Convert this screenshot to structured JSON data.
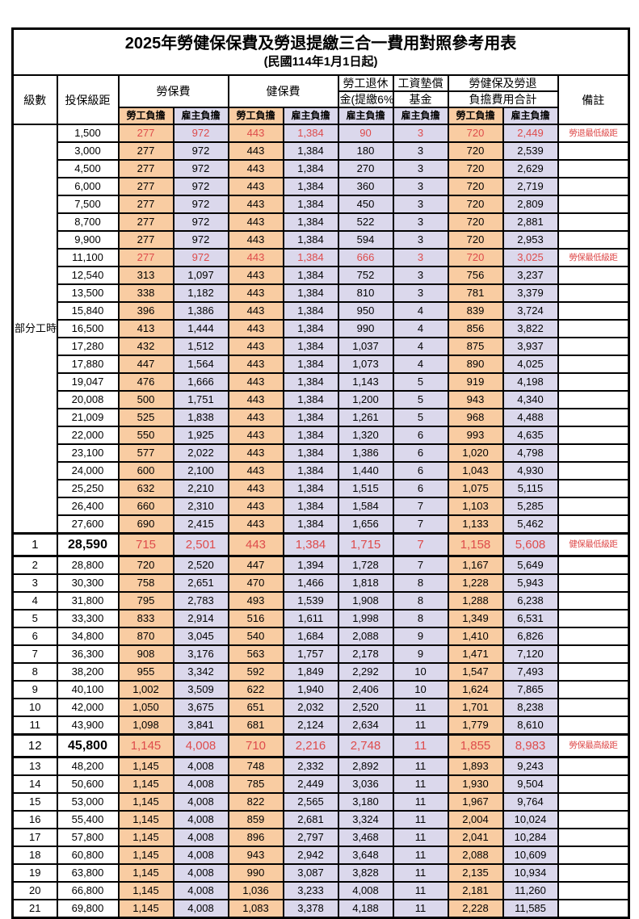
{
  "title": "2025年勞健保保費及勞退提繳三合一費用對照參考用表",
  "subtitle": "(民國114年1月1日起)",
  "header": {
    "grade": "級數",
    "bracket": "投保級距",
    "labor_insurance": "勞保費",
    "health_insurance": "健保費",
    "pension_line1": "勞工退休",
    "pension_line2": "金(提繳6%)",
    "wage_fund_line1": "工資墊償",
    "wage_fund_line2": "基金",
    "total_line1": "勞健保及勞退",
    "total_line2": "負擔費用合計",
    "remark": "備註",
    "employee": "勞工負擔",
    "employer": "雇主負擔"
  },
  "part_time_label": "部分工時",
  "colors": {
    "employee_bg": "#F9CCA2",
    "employer_bg": "#DBD8EC",
    "highlight_red": "#DE4B4B"
  },
  "rows": [
    {
      "grade": null,
      "bracket": "1,500",
      "labor_emp": "277",
      "labor_er": "972",
      "health_emp": "443",
      "health_er": "1,384",
      "pension": "90",
      "fund": "3",
      "total_emp": "720",
      "total_er": "2,449",
      "remark": "勞退最低級距",
      "red": true,
      "special": false
    },
    {
      "grade": null,
      "bracket": "3,000",
      "labor_emp": "277",
      "labor_er": "972",
      "health_emp": "443",
      "health_er": "1,384",
      "pension": "180",
      "fund": "3",
      "total_emp": "720",
      "total_er": "2,539",
      "remark": "",
      "red": false,
      "special": false
    },
    {
      "grade": null,
      "bracket": "4,500",
      "labor_emp": "277",
      "labor_er": "972",
      "health_emp": "443",
      "health_er": "1,384",
      "pension": "270",
      "fund": "3",
      "total_emp": "720",
      "total_er": "2,629",
      "remark": "",
      "red": false,
      "special": false
    },
    {
      "grade": null,
      "bracket": "6,000",
      "labor_emp": "277",
      "labor_er": "972",
      "health_emp": "443",
      "health_er": "1,384",
      "pension": "360",
      "fund": "3",
      "total_emp": "720",
      "total_er": "2,719",
      "remark": "",
      "red": false,
      "special": false
    },
    {
      "grade": null,
      "bracket": "7,500",
      "labor_emp": "277",
      "labor_er": "972",
      "health_emp": "443",
      "health_er": "1,384",
      "pension": "450",
      "fund": "3",
      "total_emp": "720",
      "total_er": "2,809",
      "remark": "",
      "red": false,
      "special": false
    },
    {
      "grade": null,
      "bracket": "8,700",
      "labor_emp": "277",
      "labor_er": "972",
      "health_emp": "443",
      "health_er": "1,384",
      "pension": "522",
      "fund": "3",
      "total_emp": "720",
      "total_er": "2,881",
      "remark": "",
      "red": false,
      "special": false
    },
    {
      "grade": null,
      "bracket": "9,900",
      "labor_emp": "277",
      "labor_er": "972",
      "health_emp": "443",
      "health_er": "1,384",
      "pension": "594",
      "fund": "3",
      "total_emp": "720",
      "total_er": "2,953",
      "remark": "",
      "red": false,
      "special": false
    },
    {
      "grade": null,
      "bracket": "11,100",
      "labor_emp": "277",
      "labor_er": "972",
      "health_emp": "443",
      "health_er": "1,384",
      "pension": "666",
      "fund": "3",
      "total_emp": "720",
      "total_er": "3,025",
      "remark": "勞保最低級距",
      "red": true,
      "special": false
    },
    {
      "grade": null,
      "bracket": "12,540",
      "labor_emp": "313",
      "labor_er": "1,097",
      "health_emp": "443",
      "health_er": "1,384",
      "pension": "752",
      "fund": "3",
      "total_emp": "756",
      "total_er": "3,237",
      "remark": "",
      "red": false,
      "special": false
    },
    {
      "grade": null,
      "bracket": "13,500",
      "labor_emp": "338",
      "labor_er": "1,182",
      "health_emp": "443",
      "health_er": "1,384",
      "pension": "810",
      "fund": "3",
      "total_emp": "781",
      "total_er": "3,379",
      "remark": "",
      "red": false,
      "special": false
    },
    {
      "grade": null,
      "bracket": "15,840",
      "labor_emp": "396",
      "labor_er": "1,386",
      "health_emp": "443",
      "health_er": "1,384",
      "pension": "950",
      "fund": "4",
      "total_emp": "839",
      "total_er": "3,724",
      "remark": "",
      "red": false,
      "special": false
    },
    {
      "grade": null,
      "bracket": "16,500",
      "labor_emp": "413",
      "labor_er": "1,444",
      "health_emp": "443",
      "health_er": "1,384",
      "pension": "990",
      "fund": "4",
      "total_emp": "856",
      "total_er": "3,822",
      "remark": "",
      "red": false,
      "special": false
    },
    {
      "grade": null,
      "bracket": "17,280",
      "labor_emp": "432",
      "labor_er": "1,512",
      "health_emp": "443",
      "health_er": "1,384",
      "pension": "1,037",
      "fund": "4",
      "total_emp": "875",
      "total_er": "3,937",
      "remark": "",
      "red": false,
      "special": false
    },
    {
      "grade": null,
      "bracket": "17,880",
      "labor_emp": "447",
      "labor_er": "1,564",
      "health_emp": "443",
      "health_er": "1,384",
      "pension": "1,073",
      "fund": "4",
      "total_emp": "890",
      "total_er": "4,025",
      "remark": "",
      "red": false,
      "special": false
    },
    {
      "grade": null,
      "bracket": "19,047",
      "labor_emp": "476",
      "labor_er": "1,666",
      "health_emp": "443",
      "health_er": "1,384",
      "pension": "1,143",
      "fund": "5",
      "total_emp": "919",
      "total_er": "4,198",
      "remark": "",
      "red": false,
      "special": false
    },
    {
      "grade": null,
      "bracket": "20,008",
      "labor_emp": "500",
      "labor_er": "1,751",
      "health_emp": "443",
      "health_er": "1,384",
      "pension": "1,200",
      "fund": "5",
      "total_emp": "943",
      "total_er": "4,340",
      "remark": "",
      "red": false,
      "special": false
    },
    {
      "grade": null,
      "bracket": "21,009",
      "labor_emp": "525",
      "labor_er": "1,838",
      "health_emp": "443",
      "health_er": "1,384",
      "pension": "1,261",
      "fund": "5",
      "total_emp": "968",
      "total_er": "4,488",
      "remark": "",
      "red": false,
      "special": false
    },
    {
      "grade": null,
      "bracket": "22,000",
      "labor_emp": "550",
      "labor_er": "1,925",
      "health_emp": "443",
      "health_er": "1,384",
      "pension": "1,320",
      "fund": "6",
      "total_emp": "993",
      "total_er": "4,635",
      "remark": "",
      "red": false,
      "special": false
    },
    {
      "grade": null,
      "bracket": "23,100",
      "labor_emp": "577",
      "labor_er": "2,022",
      "health_emp": "443",
      "health_er": "1,384",
      "pension": "1,386",
      "fund": "6",
      "total_emp": "1,020",
      "total_er": "4,798",
      "remark": "",
      "red": false,
      "special": false
    },
    {
      "grade": null,
      "bracket": "24,000",
      "labor_emp": "600",
      "labor_er": "2,100",
      "health_emp": "443",
      "health_er": "1,384",
      "pension": "1,440",
      "fund": "6",
      "total_emp": "1,043",
      "total_er": "4,930",
      "remark": "",
      "red": false,
      "special": false
    },
    {
      "grade": null,
      "bracket": "25,250",
      "labor_emp": "632",
      "labor_er": "2,210",
      "health_emp": "443",
      "health_er": "1,384",
      "pension": "1,515",
      "fund": "6",
      "total_emp": "1,075",
      "total_er": "5,115",
      "remark": "",
      "red": false,
      "special": false
    },
    {
      "grade": null,
      "bracket": "26,400",
      "labor_emp": "660",
      "labor_er": "2,310",
      "health_emp": "443",
      "health_er": "1,384",
      "pension": "1,584",
      "fund": "7",
      "total_emp": "1,103",
      "total_er": "5,285",
      "remark": "",
      "red": false,
      "special": false
    },
    {
      "grade": null,
      "bracket": "27,600",
      "labor_emp": "690",
      "labor_er": "2,415",
      "health_emp": "443",
      "health_er": "1,384",
      "pension": "1,656",
      "fund": "7",
      "total_emp": "1,133",
      "total_er": "5,462",
      "remark": "",
      "red": false,
      "special": false
    },
    {
      "grade": "1",
      "bracket": "28,590",
      "labor_emp": "715",
      "labor_er": "2,501",
      "health_emp": "443",
      "health_er": "1,384",
      "pension": "1,715",
      "fund": "7",
      "total_emp": "1,158",
      "total_er": "5,608",
      "remark": "健保最低級距",
      "red": true,
      "special": true
    },
    {
      "grade": "2",
      "bracket": "28,800",
      "labor_emp": "720",
      "labor_er": "2,520",
      "health_emp": "447",
      "health_er": "1,394",
      "pension": "1,728",
      "fund": "7",
      "total_emp": "1,167",
      "total_er": "5,649",
      "remark": "",
      "red": false,
      "special": false
    },
    {
      "grade": "3",
      "bracket": "30,300",
      "labor_emp": "758",
      "labor_er": "2,651",
      "health_emp": "470",
      "health_er": "1,466",
      "pension": "1,818",
      "fund": "8",
      "total_emp": "1,228",
      "total_er": "5,943",
      "remark": "",
      "red": false,
      "special": false
    },
    {
      "grade": "4",
      "bracket": "31,800",
      "labor_emp": "795",
      "labor_er": "2,783",
      "health_emp": "493",
      "health_er": "1,539",
      "pension": "1,908",
      "fund": "8",
      "total_emp": "1,288",
      "total_er": "6,238",
      "remark": "",
      "red": false,
      "special": false
    },
    {
      "grade": "5",
      "bracket": "33,300",
      "labor_emp": "833",
      "labor_er": "2,914",
      "health_emp": "516",
      "health_er": "1,611",
      "pension": "1,998",
      "fund": "8",
      "total_emp": "1,349",
      "total_er": "6,531",
      "remark": "",
      "red": false,
      "special": false
    },
    {
      "grade": "6",
      "bracket": "34,800",
      "labor_emp": "870",
      "labor_er": "3,045",
      "health_emp": "540",
      "health_er": "1,684",
      "pension": "2,088",
      "fund": "9",
      "total_emp": "1,410",
      "total_er": "6,826",
      "remark": "",
      "red": false,
      "special": false
    },
    {
      "grade": "7",
      "bracket": "36,300",
      "labor_emp": "908",
      "labor_er": "3,176",
      "health_emp": "563",
      "health_er": "1,757",
      "pension": "2,178",
      "fund": "9",
      "total_emp": "1,471",
      "total_er": "7,120",
      "remark": "",
      "red": false,
      "special": false
    },
    {
      "grade": "8",
      "bracket": "38,200",
      "labor_emp": "955",
      "labor_er": "3,342",
      "health_emp": "592",
      "health_er": "1,849",
      "pension": "2,292",
      "fund": "10",
      "total_emp": "1,547",
      "total_er": "7,493",
      "remark": "",
      "red": false,
      "special": false
    },
    {
      "grade": "9",
      "bracket": "40,100",
      "labor_emp": "1,002",
      "labor_er": "3,509",
      "health_emp": "622",
      "health_er": "1,940",
      "pension": "2,406",
      "fund": "10",
      "total_emp": "1,624",
      "total_er": "7,865",
      "remark": "",
      "red": false,
      "special": false
    },
    {
      "grade": "10",
      "bracket": "42,000",
      "labor_emp": "1,050",
      "labor_er": "3,675",
      "health_emp": "651",
      "health_er": "2,032",
      "pension": "2,520",
      "fund": "11",
      "total_emp": "1,701",
      "total_er": "8,238",
      "remark": "",
      "red": false,
      "special": false
    },
    {
      "grade": "11",
      "bracket": "43,900",
      "labor_emp": "1,098",
      "labor_er": "3,841",
      "health_emp": "681",
      "health_er": "2,124",
      "pension": "2,634",
      "fund": "11",
      "total_emp": "1,779",
      "total_er": "8,610",
      "remark": "",
      "red": false,
      "special": false
    },
    {
      "grade": "12",
      "bracket": "45,800",
      "labor_emp": "1,145",
      "labor_er": "4,008",
      "health_emp": "710",
      "health_er": "2,216",
      "pension": "2,748",
      "fund": "11",
      "total_emp": "1,855",
      "total_er": "8,983",
      "remark": "勞保最高級距",
      "red": true,
      "special": true
    },
    {
      "grade": "13",
      "bracket": "48,200",
      "labor_emp": "1,145",
      "labor_er": "4,008",
      "health_emp": "748",
      "health_er": "2,332",
      "pension": "2,892",
      "fund": "11",
      "total_emp": "1,893",
      "total_er": "9,243",
      "remark": "",
      "red": false,
      "special": false
    },
    {
      "grade": "14",
      "bracket": "50,600",
      "labor_emp": "1,145",
      "labor_er": "4,008",
      "health_emp": "785",
      "health_er": "2,449",
      "pension": "3,036",
      "fund": "11",
      "total_emp": "1,930",
      "total_er": "9,504",
      "remark": "",
      "red": false,
      "special": false
    },
    {
      "grade": "15",
      "bracket": "53,000",
      "labor_emp": "1,145",
      "labor_er": "4,008",
      "health_emp": "822",
      "health_er": "2,565",
      "pension": "3,180",
      "fund": "11",
      "total_emp": "1,967",
      "total_er": "9,764",
      "remark": "",
      "red": false,
      "special": false
    },
    {
      "grade": "16",
      "bracket": "55,400",
      "labor_emp": "1,145",
      "labor_er": "4,008",
      "health_emp": "859",
      "health_er": "2,681",
      "pension": "3,324",
      "fund": "11",
      "total_emp": "2,004",
      "total_er": "10,024",
      "remark": "",
      "red": false,
      "special": false
    },
    {
      "grade": "17",
      "bracket": "57,800",
      "labor_emp": "1,145",
      "labor_er": "4,008",
      "health_emp": "896",
      "health_er": "2,797",
      "pension": "3,468",
      "fund": "11",
      "total_emp": "2,041",
      "total_er": "10,284",
      "remark": "",
      "red": false,
      "special": false
    },
    {
      "grade": "18",
      "bracket": "60,800",
      "labor_emp": "1,145",
      "labor_er": "4,008",
      "health_emp": "943",
      "health_er": "2,942",
      "pension": "3,648",
      "fund": "11",
      "total_emp": "2,088",
      "total_er": "10,609",
      "remark": "",
      "red": false,
      "special": false
    },
    {
      "grade": "19",
      "bracket": "63,800",
      "labor_emp": "1,145",
      "labor_er": "4,008",
      "health_emp": "990",
      "health_er": "3,087",
      "pension": "3,828",
      "fund": "11",
      "total_emp": "2,135",
      "total_er": "10,934",
      "remark": "",
      "red": false,
      "special": false
    },
    {
      "grade": "20",
      "bracket": "66,800",
      "labor_emp": "1,145",
      "labor_er": "4,008",
      "health_emp": "1,036",
      "health_er": "3,233",
      "pension": "4,008",
      "fund": "11",
      "total_emp": "2,181",
      "total_er": "11,260",
      "remark": "",
      "red": false,
      "special": false
    },
    {
      "grade": "21",
      "bracket": "69,800",
      "labor_emp": "1,145",
      "labor_er": "4,008",
      "health_emp": "1,083",
      "health_er": "3,378",
      "pension": "4,188",
      "fund": "11",
      "total_emp": "2,228",
      "total_er": "11,585",
      "remark": "",
      "red": false,
      "special": false
    }
  ]
}
